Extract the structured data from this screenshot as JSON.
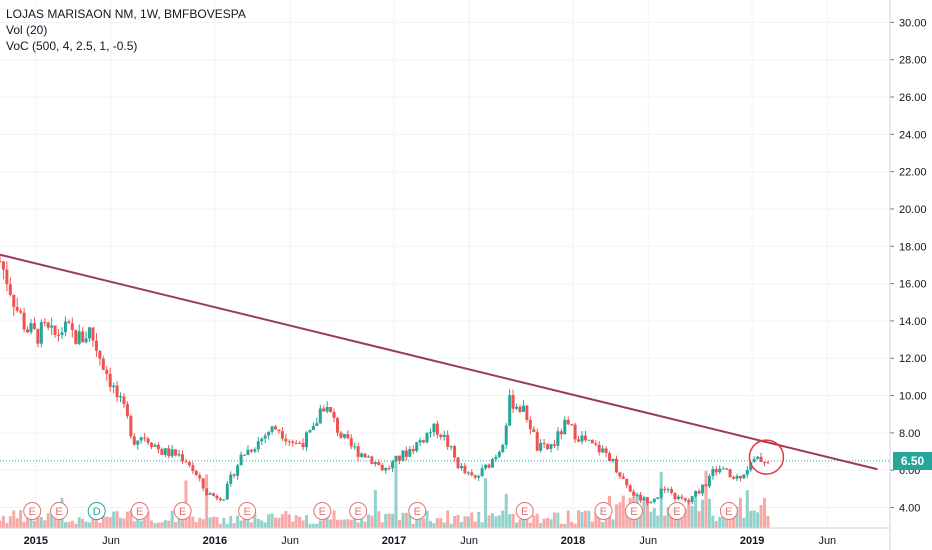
{
  "legend": {
    "title": "LOJAS MARISAON NM, 1W, BMFBOVESPA",
    "vol": "Vol (20)",
    "voc": "VoC (500, 4, 2.5, 1, -0.5)"
  },
  "last_price": "6.50",
  "colors": {
    "up": "#26a69a",
    "down": "#ef5350",
    "trendline": "#9c3a5a",
    "circle": "#e53935",
    "grid": "#f0f3fa",
    "axis_text": "#131722",
    "price_line": "#26a69a",
    "event_border": "#e57373",
    "dividend_border": "#26a69a"
  },
  "chart_data": {
    "type": "candlestick",
    "title": "LOJAS MARISAON NM, 1W, BMFBOVESPA",
    "y_ticks": [
      "4.00",
      "6.00",
      "8.00",
      "10.00",
      "12.00",
      "14.00",
      "16.00",
      "18.00",
      "20.00",
      "22.00",
      "24.00",
      "26.00",
      "28.00",
      "30.00"
    ],
    "ylim": [
      2.9,
      31.2
    ],
    "x_ticks": [
      {
        "label": "2015",
        "date": 2015.0
      },
      {
        "label": "Jun",
        "date": 2015.42
      },
      {
        "label": "2016",
        "date": 2016.0
      },
      {
        "label": "Jun",
        "date": 2016.42
      },
      {
        "label": "2017",
        "date": 2017.0
      },
      {
        "label": "Jun",
        "date": 2017.42
      },
      {
        "label": "2018",
        "date": 2018.0
      },
      {
        "label": "Jun",
        "date": 2018.42
      },
      {
        "label": "2019",
        "date": 2019.0
      },
      {
        "label": "Jun",
        "date": 2019.42
      }
    ],
    "xlim": [
      2014.8,
      2019.77
    ],
    "price_path": [
      [
        2014.8,
        17.2
      ],
      [
        2014.85,
        16.0
      ],
      [
        2014.9,
        14.5
      ],
      [
        2014.95,
        13.6
      ],
      [
        2015.0,
        13.2
      ],
      [
        2015.05,
        13.5
      ],
      [
        2015.1,
        13.1
      ],
      [
        2015.15,
        13.6
      ],
      [
        2015.2,
        13.3
      ],
      [
        2015.25,
        13.0
      ],
      [
        2015.3,
        13.5
      ],
      [
        2015.35,
        12.3
      ],
      [
        2015.4,
        11.2
      ],
      [
        2015.45,
        10.0
      ],
      [
        2015.5,
        9.0
      ],
      [
        2015.55,
        7.6
      ],
      [
        2015.6,
        7.9
      ],
      [
        2015.65,
        7.5
      ],
      [
        2015.7,
        7.0
      ],
      [
        2015.75,
        6.9
      ],
      [
        2015.8,
        6.8
      ],
      [
        2015.85,
        6.5
      ],
      [
        2015.9,
        5.6
      ],
      [
        2015.95,
        4.8
      ],
      [
        2016.0,
        4.6
      ],
      [
        2016.05,
        4.6
      ],
      [
        2016.1,
        5.8
      ],
      [
        2016.15,
        6.8
      ],
      [
        2016.2,
        7.2
      ],
      [
        2016.25,
        7.6
      ],
      [
        2016.3,
        8.1
      ],
      [
        2016.35,
        8.3
      ],
      [
        2016.4,
        7.8
      ],
      [
        2016.45,
        7.4
      ],
      [
        2016.5,
        7.6
      ],
      [
        2016.55,
        8.1
      ],
      [
        2016.6,
        9.6
      ],
      [
        2016.65,
        8.9
      ],
      [
        2016.7,
        7.9
      ],
      [
        2016.75,
        7.3
      ],
      [
        2016.8,
        7.0
      ],
      [
        2016.85,
        6.8
      ],
      [
        2016.9,
        6.4
      ],
      [
        2016.95,
        6.0
      ],
      [
        2017.0,
        6.4
      ],
      [
        2017.05,
        6.8
      ],
      [
        2017.1,
        7.2
      ],
      [
        2017.15,
        7.6
      ],
      [
        2017.2,
        8.1
      ],
      [
        2017.25,
        8.2
      ],
      [
        2017.3,
        7.4
      ],
      [
        2017.35,
        6.4
      ],
      [
        2017.4,
        5.8
      ],
      [
        2017.45,
        5.5
      ],
      [
        2017.5,
        6.0
      ],
      [
        2017.55,
        6.6
      ],
      [
        2017.6,
        7.3
      ],
      [
        2017.65,
        9.8
      ],
      [
        2017.7,
        9.4
      ],
      [
        2017.75,
        8.8
      ],
      [
        2017.8,
        7.2
      ],
      [
        2017.85,
        7.1
      ],
      [
        2017.9,
        7.5
      ],
      [
        2017.95,
        8.4
      ],
      [
        2018.0,
        8.1
      ],
      [
        2018.05,
        7.7
      ],
      [
        2018.1,
        7.3
      ],
      [
        2018.15,
        7.1
      ],
      [
        2018.2,
        6.8
      ],
      [
        2018.25,
        6.0
      ],
      [
        2018.3,
        5.2
      ],
      [
        2018.35,
        4.6
      ],
      [
        2018.4,
        4.4
      ],
      [
        2018.45,
        4.5
      ],
      [
        2018.5,
        4.9
      ],
      [
        2018.55,
        4.7
      ],
      [
        2018.6,
        4.4
      ],
      [
        2018.65,
        4.3
      ],
      [
        2018.7,
        4.9
      ],
      [
        2018.75,
        5.4
      ],
      [
        2018.8,
        6.1
      ],
      [
        2018.85,
        5.9
      ],
      [
        2018.9,
        5.5
      ],
      [
        2018.95,
        5.9
      ],
      [
        2019.0,
        6.4
      ],
      [
        2019.05,
        6.6
      ],
      [
        2019.1,
        6.5
      ]
    ],
    "trendline": {
      "start": [
        2014.8,
        17.55
      ],
      "end": [
        2019.7,
        6.05
      ]
    },
    "event_markers": [
      {
        "label": "E",
        "date": 2014.98,
        "type": "earnings"
      },
      {
        "label": "E",
        "date": 2015.13,
        "type": "earnings"
      },
      {
        "label": "D",
        "date": 2015.34,
        "type": "dividend"
      },
      {
        "label": "E",
        "date": 2015.58,
        "type": "earnings"
      },
      {
        "label": "E",
        "date": 2015.82,
        "type": "earnings"
      },
      {
        "label": "E",
        "date": 2016.18,
        "type": "earnings"
      },
      {
        "label": "E",
        "date": 2016.6,
        "type": "earnings"
      },
      {
        "label": "E",
        "date": 2016.8,
        "type": "earnings"
      },
      {
        "label": "E",
        "date": 2017.13,
        "type": "earnings"
      },
      {
        "label": "E",
        "date": 2017.73,
        "type": "earnings"
      },
      {
        "label": "E",
        "date": 2018.17,
        "type": "earnings"
      },
      {
        "label": "E",
        "date": 2018.34,
        "type": "earnings"
      },
      {
        "label": "E",
        "date": 2018.58,
        "type": "earnings"
      },
      {
        "label": "E",
        "date": 2018.87,
        "type": "earnings"
      }
    ]
  }
}
